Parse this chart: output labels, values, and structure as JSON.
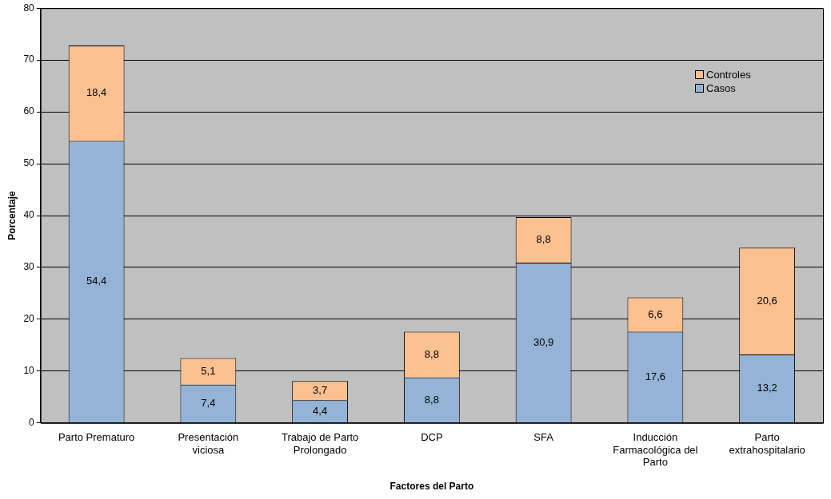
{
  "chart_data": {
    "type": "bar",
    "stacked": true,
    "xlabel": "Factores del Parto",
    "ylabel": "Porcentaje",
    "categories": [
      "Parto Prematuro",
      "Presentación viciosa",
      "Trabajo de Parto Prolongado",
      "DCP",
      "SFA",
      "Inducción Farmacológica del Parto",
      "Parto extrahospitalario"
    ],
    "series": [
      {
        "name": "Casos",
        "color": "#95b3d7",
        "values": [
          54.4,
          7.4,
          4.4,
          8.8,
          30.9,
          17.6,
          13.2
        ],
        "value_labels": [
          "54,4",
          "7,4",
          "4,4",
          "8,8",
          "30,9",
          "17,6",
          "13,2"
        ]
      },
      {
        "name": "Controles",
        "color": "#fac090",
        "values": [
          18.4,
          5.1,
          3.7,
          8.8,
          8.8,
          6.6,
          20.6
        ],
        "value_labels": [
          "18,4",
          "5,1",
          "3,7",
          "8,8",
          "8,8",
          "6,6",
          "20,6"
        ]
      }
    ],
    "ylim": [
      0,
      80
    ],
    "yticks": [
      0,
      10,
      20,
      30,
      40,
      50,
      60,
      70,
      80
    ],
    "grid": "y",
    "legend": "top right"
  }
}
